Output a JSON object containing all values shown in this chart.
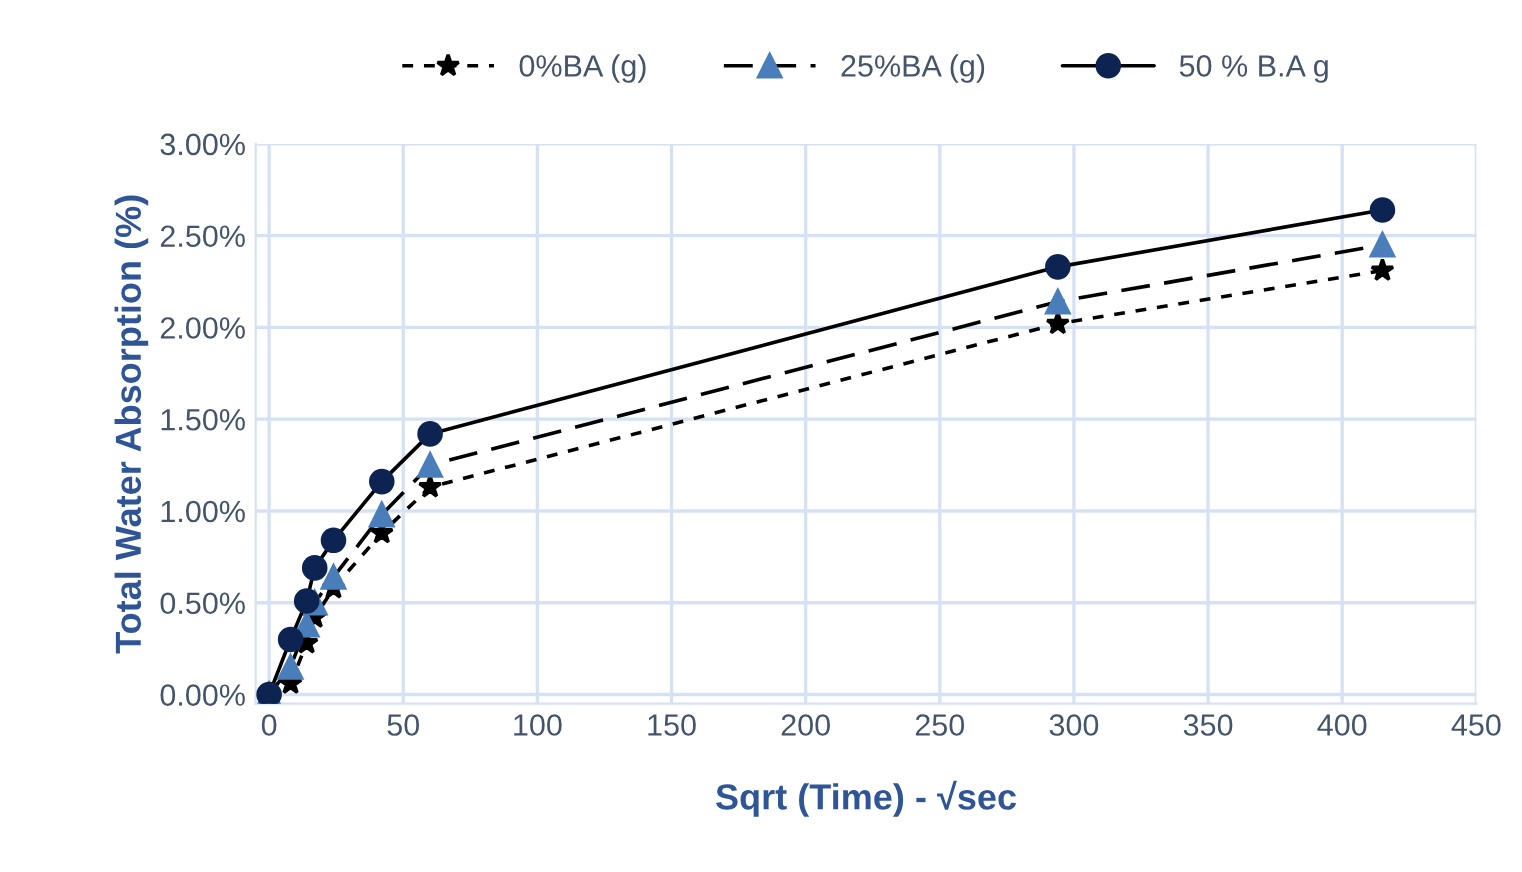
{
  "chart_data": {
    "type": "line",
    "xlabel": "Sqrt (Time) - √sec",
    "ylabel": "Total Water Absorption (%)",
    "x": [
      0,
      8,
      14,
      17,
      24,
      42,
      60,
      294,
      415
    ],
    "series": [
      {
        "name": "0%BA (g)",
        "color": "#000000",
        "marker": "star",
        "line_style": "dotted",
        "values": [
          0,
          0.06,
          0.28,
          0.42,
          0.58,
          0.88,
          1.13,
          2.02,
          2.31
        ]
      },
      {
        "name": "25%BA (g)",
        "color": "#4a7ebb",
        "marker": "triangle",
        "line_style": "dashed",
        "values": [
          0,
          0.15,
          0.38,
          0.5,
          0.64,
          0.98,
          1.25,
          2.14,
          2.45
        ]
      },
      {
        "name": "50 % B.A g",
        "color": "#0d2453",
        "marker": "circle",
        "line_style": "solid",
        "values": [
          0,
          0.3,
          0.51,
          0.69,
          0.84,
          1.16,
          1.42,
          2.33,
          2.64
        ]
      }
    ],
    "xlim": [
      -5,
      450
    ],
    "xticks": [
      0,
      50,
      100,
      150,
      200,
      250,
      300,
      350,
      400,
      450
    ],
    "ylim": [
      -0.05,
      3.0
    ],
    "yticks": [
      {
        "value": 0,
        "label": "0.00%"
      },
      {
        "value": 0.5,
        "label": "0.50%"
      },
      {
        "value": 1.0,
        "label": "1.00%"
      },
      {
        "value": 1.5,
        "label": "1.50%"
      },
      {
        "value": 2.0,
        "label": "2.00%"
      },
      {
        "value": 2.5,
        "label": "2.50%"
      },
      {
        "value": 3.0,
        "label": "3.00%"
      }
    ],
    "grid": true,
    "legend": "top"
  }
}
